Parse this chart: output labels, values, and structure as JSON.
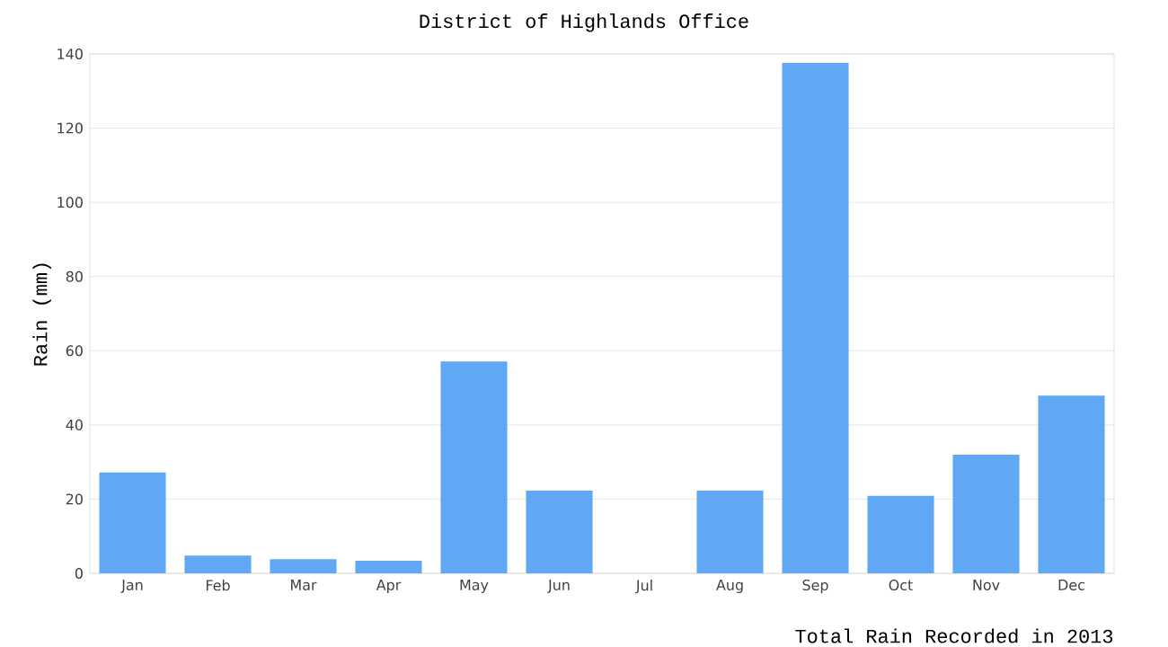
{
  "chart_data": {
    "type": "bar",
    "title": "District of Highlands Office",
    "xlabel": "Total Rain Recorded in 2013",
    "ylabel": "Rain (mm)",
    "categories": [
      "Jan",
      "Feb",
      "Mar",
      "Apr",
      "May",
      "Jun",
      "Jul",
      "Aug",
      "Sep",
      "Oct",
      "Nov",
      "Dec"
    ],
    "values": [
      27.2,
      4.8,
      3.8,
      3.4,
      57.1,
      22.3,
      0,
      22.3,
      137.6,
      20.9,
      32,
      47.9
    ],
    "color": "#60a8f4",
    "ylim": [
      0,
      140
    ],
    "yticks": [
      0,
      20,
      40,
      60,
      80,
      100,
      120,
      140
    ],
    "grid": "y"
  }
}
